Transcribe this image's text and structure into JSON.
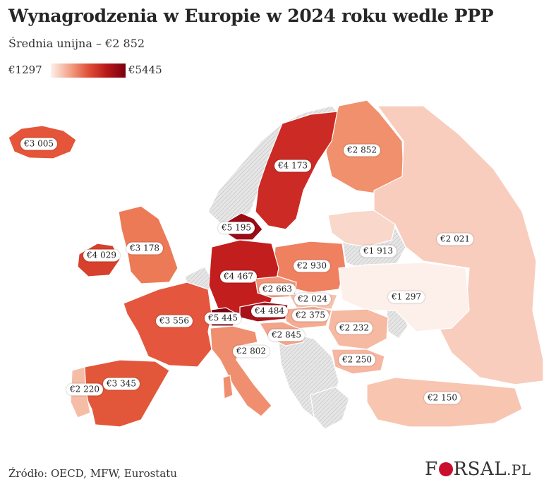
{
  "title": "Wynagrodzenia w Europie w 2024 roku wedle PPP",
  "subtitle": "Średnia unijna – €2 852",
  "legend": {
    "min": "€1297",
    "max": "€5445",
    "colors": [
      "#fdf0ea",
      "#f3a48a",
      "#e0503a",
      "#b71818",
      "#7a0010"
    ]
  },
  "labels": {
    "iceland": "€3 005",
    "sweden": "€4 173",
    "finland": "€2 852",
    "denmark": "€5 195",
    "ireland": "€4 029",
    "uk": "€3 178",
    "russia": "€2 021",
    "baltic": "€1 913",
    "poland": "€2 930",
    "germany": "€4 467",
    "czechia": "€2 663",
    "slovakia": "€2 024",
    "ukraine": "€1 297",
    "austria": "€4 484",
    "switzerland": "€5 445",
    "hungary": "€2 375",
    "france": "€3 556",
    "slovenia": "€2 845",
    "romania": "€2 232",
    "italy": "€2 802",
    "bulgaria": "€2 250",
    "spain": "€3 345",
    "portugal": "€2 220",
    "turkey": "€2 150"
  },
  "source": "Źródło: OECD, MFW, Eurostatu",
  "logo": {
    "pre": "F",
    "post": "RSAL",
    "suffix": ".PL"
  }
}
